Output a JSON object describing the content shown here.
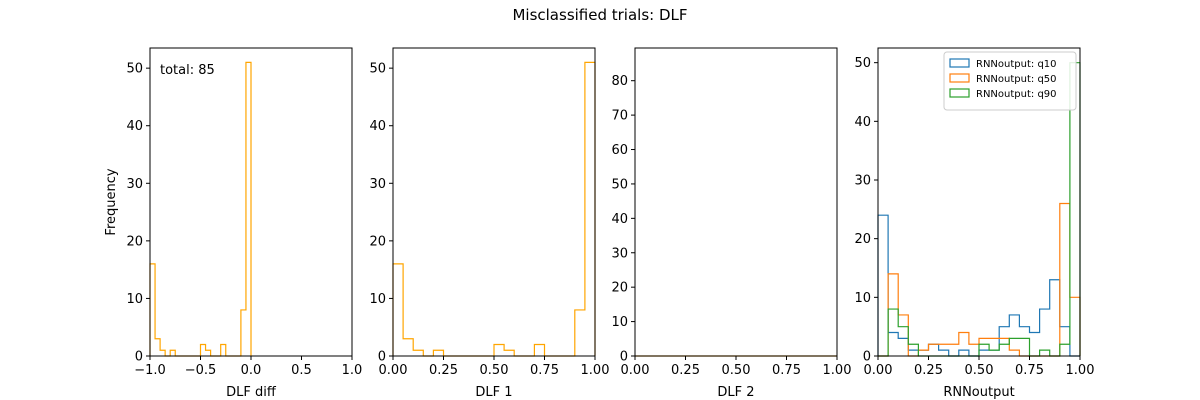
{
  "figure": {
    "title": "Misclassified trials: DLF"
  },
  "chart_data": [
    {
      "type": "histogram",
      "xlabel": "DLF diff",
      "ylabel": "Frequency",
      "xlim": [
        -1.0,
        1.0
      ],
      "ylim": [
        0,
        53.5
      ],
      "xticks": [
        -1.0,
        -0.5,
        0.0,
        0.5,
        1.0
      ],
      "xtick_labels": [
        "−1.0",
        "−0.5",
        "0.0",
        "0.5",
        "1.0"
      ],
      "yticks": [
        0,
        10,
        20,
        30,
        40,
        50
      ],
      "annotation": "total: 85",
      "series": [
        {
          "color": "#ffa500",
          "edges": [
            -1.0,
            -0.95,
            -0.9,
            -0.85,
            -0.8,
            -0.75,
            -0.7,
            -0.65,
            -0.6,
            -0.55,
            -0.5,
            -0.45,
            -0.4,
            -0.35,
            -0.3,
            -0.25,
            -0.2,
            -0.15,
            -0.1,
            -0.05,
            0.0
          ],
          "counts": [
            16,
            3,
            1,
            0,
            1,
            0,
            0,
            0,
            0,
            0,
            2,
            1,
            0,
            0,
            2,
            0,
            0,
            0,
            8,
            51
          ]
        }
      ]
    },
    {
      "type": "histogram",
      "xlabel": "DLF 1",
      "ylabel": "",
      "xlim": [
        0.0,
        1.0
      ],
      "ylim": [
        0,
        53.5
      ],
      "xticks": [
        0.0,
        0.25,
        0.5,
        0.75,
        1.0
      ],
      "xtick_labels": [
        "0.00",
        "0.25",
        "0.50",
        "0.75",
        "1.00"
      ],
      "yticks": [
        0,
        10,
        20,
        30,
        40,
        50
      ],
      "series": [
        {
          "color": "#ffa500",
          "edges": [
            0.0,
            0.05,
            0.1,
            0.15,
            0.2,
            0.25,
            0.3,
            0.35,
            0.4,
            0.45,
            0.5,
            0.55,
            0.6,
            0.65,
            0.7,
            0.75,
            0.8,
            0.85,
            0.9,
            0.95,
            1.0
          ],
          "counts": [
            16,
            3,
            1,
            0,
            1,
            0,
            0,
            0,
            0,
            0,
            2,
            1,
            0,
            0,
            2,
            0,
            0,
            0,
            8,
            51
          ]
        }
      ]
    },
    {
      "type": "histogram",
      "xlabel": "DLF 2",
      "ylabel": "",
      "xlim": [
        0.0,
        1.0
      ],
      "ylim": [
        0,
        89.5
      ],
      "xticks": [
        0.0,
        0.25,
        0.5,
        0.75,
        1.0
      ],
      "xtick_labels": [
        "0.00",
        "0.25",
        "0.50",
        "0.75",
        "1.00"
      ],
      "yticks": [
        0,
        10,
        20,
        30,
        40,
        50,
        60,
        70,
        80
      ],
      "series": [
        {
          "color": "#ffa500",
          "edges": [
            0.0,
            1.0
          ],
          "counts": [
            0
          ]
        }
      ]
    },
    {
      "type": "histogram",
      "xlabel": "RNNoutput",
      "ylabel": "",
      "xlim": [
        0.0,
        1.0
      ],
      "ylim": [
        0,
        52.5
      ],
      "xticks": [
        0.0,
        0.25,
        0.5,
        0.75,
        1.0
      ],
      "xtick_labels": [
        "0.00",
        "0.25",
        "0.50",
        "0.75",
        "1.00"
      ],
      "yticks": [
        0,
        10,
        20,
        30,
        40,
        50
      ],
      "legend": "top-right",
      "series": [
        {
          "name": "RNNoutput: q10",
          "color": "#1f77b4",
          "edges": [
            0.0,
            0.05,
            0.1,
            0.15,
            0.2,
            0.25,
            0.3,
            0.35,
            0.4,
            0.45,
            0.5,
            0.55,
            0.6,
            0.65,
            0.7,
            0.75,
            0.8,
            0.85,
            0.9,
            0.95,
            1.0
          ],
          "counts": [
            24,
            4,
            3,
            1,
            1,
            2,
            1,
            0,
            1,
            0,
            1,
            1,
            5,
            7,
            5,
            4,
            8,
            13,
            5,
            0
          ]
        },
        {
          "name": "RNNoutput: q50",
          "color": "#ff7f0e",
          "edges": [
            0.0,
            0.05,
            0.1,
            0.15,
            0.2,
            0.25,
            0.3,
            0.35,
            0.4,
            0.45,
            0.5,
            0.55,
            0.6,
            0.65,
            0.7,
            0.75,
            0.8,
            0.85,
            0.9,
            0.95,
            1.0
          ],
          "counts": [
            0,
            14,
            7,
            0,
            1,
            2,
            2,
            2,
            4,
            2,
            3,
            3,
            3,
            1,
            0,
            0,
            0,
            0,
            26,
            10
          ]
        },
        {
          "name": "RNNoutput: q90",
          "color": "#2ca02c",
          "edges": [
            0.0,
            0.05,
            0.1,
            0.15,
            0.2,
            0.25,
            0.3,
            0.35,
            0.4,
            0.45,
            0.5,
            0.55,
            0.6,
            0.65,
            0.7,
            0.75,
            0.8,
            0.85,
            0.9,
            0.95,
            1.0
          ],
          "counts": [
            0,
            8,
            5,
            2,
            0,
            0,
            0,
            0,
            0,
            0,
            2,
            1,
            2,
            3,
            3,
            0,
            1,
            0,
            2,
            50
          ]
        }
      ]
    }
  ]
}
